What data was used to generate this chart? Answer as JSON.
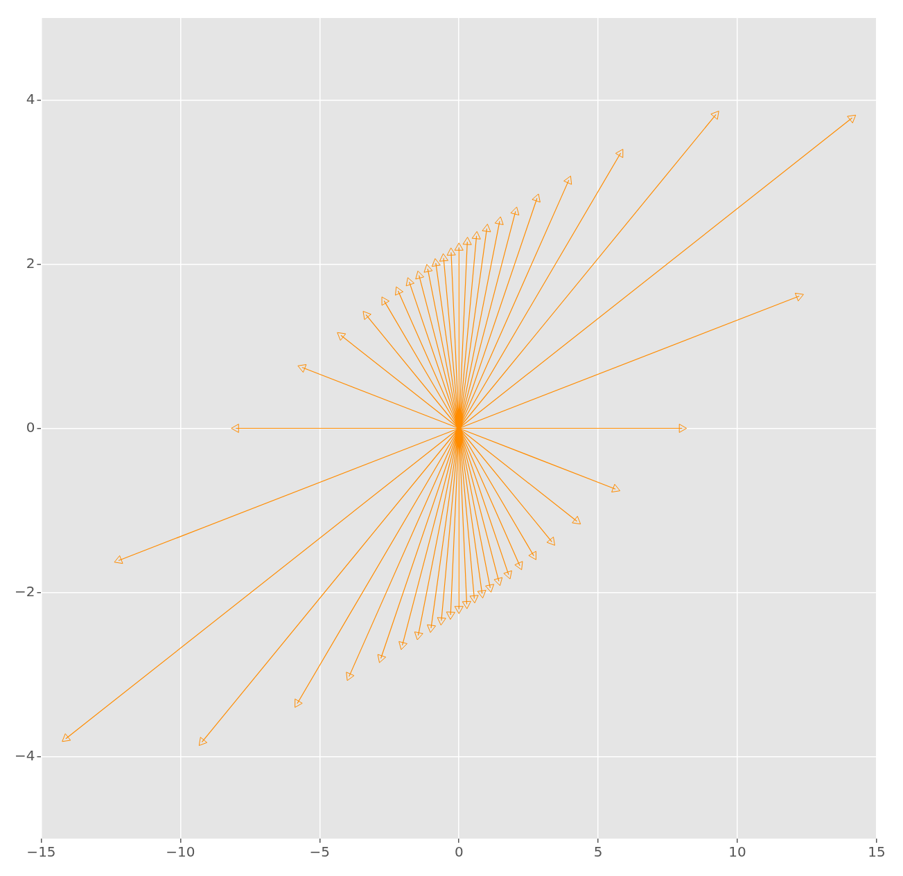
{
  "chart_data": {
    "type": "scatter",
    "marker": "triangle",
    "grid": true,
    "xlim": [
      -15,
      15
    ],
    "xticks": [
      {
        "value": -15,
        "label": "−15"
      },
      {
        "value": -10,
        "label": "−10"
      },
      {
        "value": -5,
        "label": "−5"
      },
      0,
      5,
      10,
      15
    ],
    "ylim": [
      -5,
      5
    ],
    "yticks": [
      {
        "value": -4,
        "label": "−4"
      },
      {
        "value": -2,
        "label": "−2"
      },
      0,
      2,
      4
    ],
    "series": [
      {
        "type": "line",
        "marker": "none",
        "color": "#ff8c00",
        "x": [
          0,
          8,
          0,
          12.21,
          0,
          14.11,
          0,
          9.22,
          0,
          5.8,
          0,
          3.94,
          0,
          2.8,
          0,
          2.03,
          0,
          1.46,
          0,
          1.0,
          0,
          0.63,
          0,
          0.3,
          0,
          0,
          0,
          -0.28,
          0,
          -0.55,
          0,
          -0.83,
          0,
          -1.12,
          0,
          -1.43,
          0,
          -1.78,
          0,
          -2.18,
          0,
          -2.68,
          0,
          -3.33,
          0,
          -4.23,
          0,
          -5.62,
          0,
          -8,
          0,
          -12.21,
          0,
          -14.11,
          0,
          -9.22,
          0,
          -5.8,
          0,
          -3.94,
          0,
          -2.8,
          0,
          -2.03,
          0,
          -1.46,
          0,
          -1.0,
          0,
          -0.63,
          0,
          -0.3,
          0,
          0,
          0,
          0.28,
          0,
          0.55,
          0,
          0.83,
          0,
          1.12,
          0,
          1.43,
          0,
          1.78,
          0,
          2.18,
          0,
          2.68,
          0,
          3.33,
          0,
          4.23,
          0,
          5.62
        ],
        "values": [
          0,
          0,
          0,
          1.61,
          0,
          3.78,
          0,
          3.82,
          0,
          3.35,
          0,
          3.02,
          0,
          2.8,
          0,
          2.64,
          0,
          2.52,
          0,
          2.43,
          0,
          2.34,
          0,
          2.27,
          0,
          2.2,
          0,
          2.14,
          0,
          2.07,
          0,
          2.01,
          0,
          1.94,
          0,
          1.86,
          0,
          1.78,
          0,
          1.67,
          0,
          1.55,
          0,
          1.38,
          0,
          1.13,
          0,
          0.74,
          0,
          0,
          0,
          -1.61,
          0,
          -3.78,
          0,
          -3.82,
          0,
          -3.35,
          0,
          -3.02,
          0,
          -2.8,
          0,
          -2.64,
          0,
          -2.52,
          0,
          -2.43,
          0,
          -2.34,
          0,
          -2.27,
          0,
          -2.2,
          0,
          -2.14,
          0,
          -2.07,
          0,
          -2.01,
          0,
          -1.94,
          0,
          -1.86,
          0,
          -1.78,
          0,
          -1.67,
          0,
          -1.55,
          0,
          -1.38,
          0,
          -1.13,
          0,
          -0.74
        ]
      },
      {
        "color": "#ff8c00",
        "x": [
          8,
          12.21,
          14.11,
          9.22,
          5.8,
          3.94,
          2.8,
          2.03,
          1.46,
          1.0,
          0.63,
          0.3,
          0,
          -0.28,
          -0.55,
          -0.83,
          -1.12,
          -1.43,
          -1.78,
          -2.18,
          -2.68,
          -3.33,
          -4.23,
          -5.62,
          -8,
          -12.21,
          -14.11,
          -9.22,
          -5.8,
          -3.94,
          -2.8,
          -2.03,
          -1.46,
          -1.0,
          -0.63,
          -0.3,
          0,
          0.28,
          0.55,
          0.83,
          1.12,
          1.43,
          1.78,
          2.18,
          2.68,
          3.33,
          4.23,
          5.62
        ],
        "values": [
          0,
          1.61,
          3.78,
          3.82,
          3.35,
          3.02,
          2.8,
          2.64,
          2.52,
          2.43,
          2.34,
          2.27,
          2.2,
          2.14,
          2.07,
          2.01,
          1.94,
          1.86,
          1.78,
          1.67,
          1.55,
          1.38,
          1.13,
          0.74,
          0,
          -1.61,
          -3.78,
          -3.82,
          -3.35,
          -3.02,
          -2.8,
          -2.64,
          -2.52,
          -2.43,
          -2.34,
          -2.27,
          -2.2,
          -2.14,
          -2.07,
          -2.01,
          -1.94,
          -1.86,
          -1.78,
          -1.67,
          -1.55,
          -1.38,
          -1.13,
          -0.74
        ]
      }
    ]
  }
}
